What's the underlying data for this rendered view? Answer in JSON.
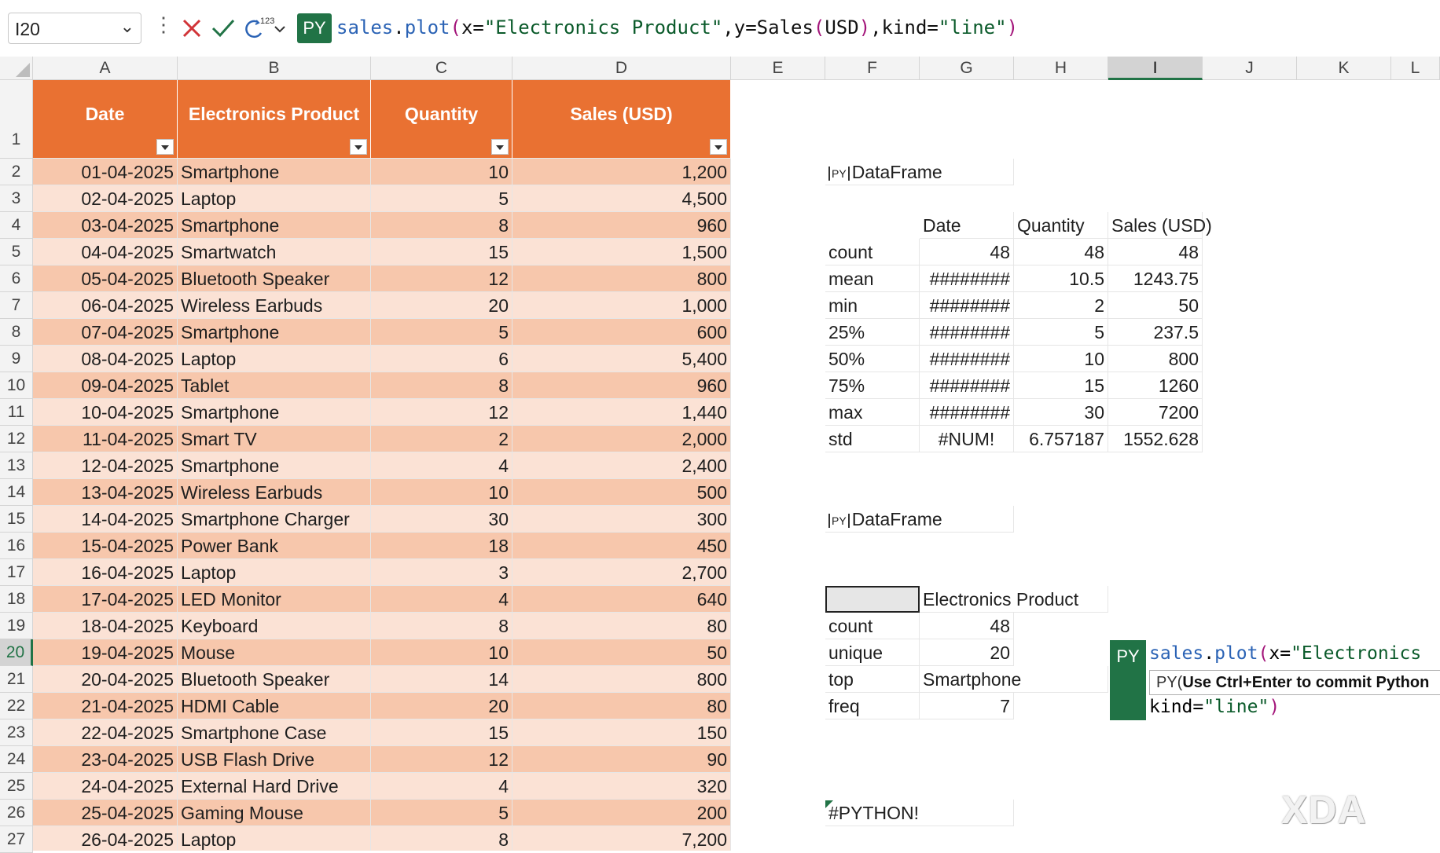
{
  "formula_bar": {
    "name_box": "I20",
    "python_badge": "PY",
    "formula_parts": [
      {
        "t": "sales",
        "k": "fn"
      },
      {
        "t": ".",
        "k": "plain"
      },
      {
        "t": "plot",
        "k": "fn"
      },
      {
        "t": "(",
        "k": "par"
      },
      {
        "t": "x=",
        "k": "plain"
      },
      {
        "t": "\"Electronics Product\"",
        "k": "str"
      },
      {
        "t": ",y=Sales",
        "k": "plain"
      },
      {
        "t": "(",
        "k": "par"
      },
      {
        "t": "USD",
        "k": "plain"
      },
      {
        "t": ")",
        "k": "par"
      },
      {
        "t": ",kind=",
        "k": "plain"
      },
      {
        "t": "\"line\"",
        "k": "str"
      },
      {
        "t": ")",
        "k": "par"
      }
    ],
    "insert_function_superscript": "123"
  },
  "columns": [
    "A",
    "B",
    "C",
    "D",
    "E",
    "F",
    "G",
    "H",
    "I",
    "J",
    "K",
    "L"
  ],
  "selected_column": "I",
  "rows": [
    "1",
    "2",
    "3",
    "4",
    "5",
    "6",
    "7",
    "8",
    "9",
    "10",
    "11",
    "12",
    "13",
    "14",
    "15",
    "16",
    "17",
    "18",
    "19",
    "20",
    "21",
    "22",
    "23",
    "24",
    "25",
    "26",
    "27"
  ],
  "selected_row": "20",
  "table": {
    "headers": [
      "Date",
      "Electronics Product",
      "Quantity",
      "Sales (USD)"
    ],
    "rows": [
      [
        "01-04-2025",
        "Smartphone",
        "10",
        "1,200"
      ],
      [
        "02-04-2025",
        "Laptop",
        "5",
        "4,500"
      ],
      [
        "03-04-2025",
        "Smartphone",
        "8",
        "960"
      ],
      [
        "04-04-2025",
        "Smartwatch",
        "15",
        "1,500"
      ],
      [
        "05-04-2025",
        "Bluetooth Speaker",
        "12",
        "800"
      ],
      [
        "06-04-2025",
        "Wireless Earbuds",
        "20",
        "1,000"
      ],
      [
        "07-04-2025",
        "Smartphone",
        "5",
        "600"
      ],
      [
        "08-04-2025",
        "Laptop",
        "6",
        "5,400"
      ],
      [
        "09-04-2025",
        "Tablet",
        "8",
        "960"
      ],
      [
        "10-04-2025",
        "Smartphone",
        "12",
        "1,440"
      ],
      [
        "11-04-2025",
        "Smart TV",
        "2",
        "2,000"
      ],
      [
        "12-04-2025",
        "Smartphone",
        "4",
        "2,400"
      ],
      [
        "13-04-2025",
        "Wireless Earbuds",
        "10",
        "500"
      ],
      [
        "14-04-2025",
        "Smartphone Charger",
        "30",
        "300"
      ],
      [
        "15-04-2025",
        "Power Bank",
        "18",
        "450"
      ],
      [
        "16-04-2025",
        "Laptop",
        "3",
        "2,700"
      ],
      [
        "17-04-2025",
        "LED Monitor",
        "4",
        "640"
      ],
      [
        "18-04-2025",
        "Keyboard",
        "8",
        "80"
      ],
      [
        "19-04-2025",
        "Mouse",
        "10",
        "50"
      ],
      [
        "20-04-2025",
        "Bluetooth Speaker",
        "14",
        "800"
      ],
      [
        "21-04-2025",
        "HDMI Cable",
        "20",
        "80"
      ],
      [
        "22-04-2025",
        "Smartphone Case",
        "15",
        "150"
      ],
      [
        "23-04-2025",
        "USB Flash Drive",
        "12",
        "90"
      ],
      [
        "24-04-2025",
        "External Hard Drive",
        "4",
        "320"
      ],
      [
        "25-04-2025",
        "Gaming Mouse",
        "5",
        "200"
      ],
      [
        "26-04-2025",
        "Laptop",
        "8",
        "7,200"
      ]
    ]
  },
  "describe_numeric": {
    "label": "DataFrame",
    "headers": [
      "Date",
      "Quantity",
      "Sales (USD)"
    ],
    "rows": [
      [
        "count",
        "48",
        "48",
        "48"
      ],
      [
        "mean",
        "########",
        "10.5",
        "1243.75"
      ],
      [
        "min",
        "########",
        "2",
        "50"
      ],
      [
        "25%",
        "########",
        "5",
        "237.5"
      ],
      [
        "50%",
        "########",
        "10",
        "800"
      ],
      [
        "75%",
        "########",
        "15",
        "1260"
      ],
      [
        "max",
        "########",
        "30",
        "7200"
      ],
      [
        "std",
        "#NUM!",
        "6.757187",
        "1552.628"
      ]
    ]
  },
  "describe_text": {
    "label": "DataFrame",
    "header": "Electronics Product",
    "rows": [
      [
        "count",
        "48"
      ],
      [
        "unique",
        "20"
      ],
      [
        "top",
        "Smartphone"
      ],
      [
        "freq",
        "7"
      ]
    ]
  },
  "python_error": "#PYTHON!",
  "cell_editor": {
    "badge": "PY",
    "line1_parts": [
      {
        "t": "sales",
        "k": "fn"
      },
      {
        "t": ".",
        "k": "plain"
      },
      {
        "t": "plot",
        "k": "fn"
      },
      {
        "t": "(",
        "k": "par"
      },
      {
        "t": "x=",
        "k": "plain"
      },
      {
        "t": "\"Electronics",
        "k": "str"
      }
    ],
    "tooltip_prefix": "PY(",
    "tooltip_bold": "Use Ctrl+Enter to commit Python",
    "line3_parts": [
      {
        "t": "kind=",
        "k": "plain"
      },
      {
        "t": "\"line\"",
        "k": "str"
      },
      {
        "t": ")",
        "k": "par"
      }
    ]
  },
  "watermark": "XDA",
  "colors": {
    "header_orange": "#e97132",
    "band_dark": "#f7c7ac",
    "band_light": "#fbe2d5",
    "excel_green": "#217346"
  },
  "icons": [
    "cancel-icon",
    "enter-icon",
    "insert-function-icon",
    "chevron-down-icon",
    "more-icon",
    "filter-dropdown-icon",
    "python-dataframe-icon"
  ]
}
